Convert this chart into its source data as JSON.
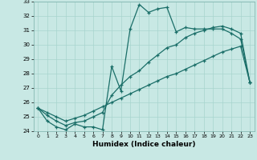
{
  "xlabel": "Humidex (Indice chaleur)",
  "xlim": [
    -0.5,
    23.5
  ],
  "ylim": [
    24,
    33
  ],
  "yticks": [
    24,
    25,
    26,
    27,
    28,
    29,
    30,
    31,
    32,
    33
  ],
  "xticks": [
    0,
    1,
    2,
    3,
    4,
    5,
    6,
    7,
    8,
    9,
    10,
    11,
    12,
    13,
    14,
    15,
    16,
    17,
    18,
    19,
    20,
    21,
    22,
    23
  ],
  "bg_color": "#c8e8e4",
  "line_color": "#1a6e68",
  "grid_color": "#a8d4ce",
  "line1_x": [
    0,
    1,
    2,
    3,
    4,
    5,
    6,
    7,
    8,
    9,
    10,
    11,
    12,
    13,
    14,
    15,
    16,
    17,
    18,
    19,
    20,
    21,
    22,
    23
  ],
  "line1_y": [
    25.6,
    24.7,
    24.3,
    24.1,
    24.5,
    24.3,
    24.3,
    24.1,
    28.5,
    26.8,
    31.1,
    32.8,
    32.25,
    32.5,
    32.6,
    30.9,
    31.2,
    31.1,
    31.1,
    31.1,
    31.1,
    30.8,
    30.4,
    27.4
  ],
  "line2_x": [
    0,
    1,
    2,
    3,
    4,
    5,
    6,
    7,
    8,
    9,
    10,
    11,
    12,
    13,
    14,
    15,
    16,
    17,
    18,
    19,
    20,
    21,
    22,
    23
  ],
  "line2_y": [
    25.6,
    25.1,
    24.7,
    24.4,
    24.6,
    24.7,
    25.0,
    25.3,
    26.5,
    27.2,
    27.8,
    28.2,
    28.8,
    29.3,
    29.8,
    30.0,
    30.5,
    30.8,
    31.0,
    31.2,
    31.3,
    31.1,
    30.8,
    27.4
  ],
  "line3_x": [
    0,
    1,
    2,
    3,
    4,
    5,
    6,
    7,
    8,
    9,
    10,
    11,
    12,
    13,
    14,
    15,
    16,
    17,
    18,
    19,
    20,
    21,
    22,
    23
  ],
  "line3_y": [
    25.6,
    25.3,
    25.0,
    24.7,
    24.9,
    25.1,
    25.4,
    25.7,
    26.0,
    26.3,
    26.6,
    26.9,
    27.2,
    27.5,
    27.8,
    28.0,
    28.3,
    28.6,
    28.9,
    29.2,
    29.5,
    29.7,
    29.9,
    27.4
  ]
}
